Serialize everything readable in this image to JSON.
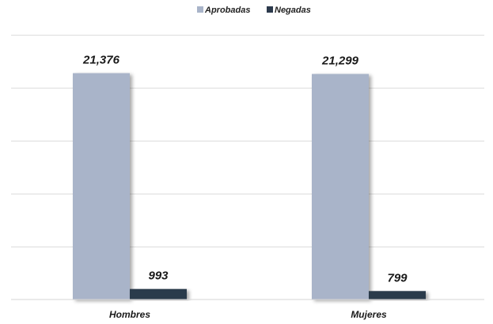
{
  "chart_data": {
    "type": "bar",
    "categories": [
      "Hombres",
      "Mujeres"
    ],
    "series": [
      {
        "name": "Aprobadas",
        "values": [
          21376,
          21299
        ],
        "labels": [
          "21,376",
          "21,299"
        ],
        "color": "#a9b4c9"
      },
      {
        "name": "Negadas",
        "values": [
          993,
          799
        ],
        "labels": [
          "993",
          "799"
        ],
        "color": "#2c3a4c"
      }
    ],
    "ylim": [
      0,
      25000
    ],
    "grid": true,
    "legend_position": "top-center",
    "title": "",
    "xlabel": "",
    "ylabel": ""
  }
}
